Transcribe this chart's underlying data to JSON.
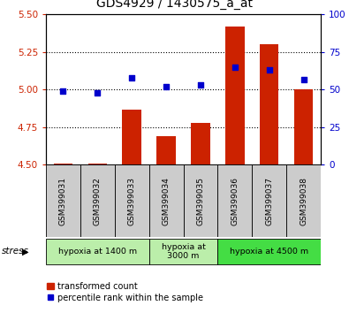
{
  "title": "GDS4929 / 1430575_a_at",
  "samples": [
    "GSM399031",
    "GSM399032",
    "GSM399033",
    "GSM399034",
    "GSM399035",
    "GSM399036",
    "GSM399037",
    "GSM399038"
  ],
  "transformed_count": [
    4.51,
    4.51,
    4.87,
    4.69,
    4.78,
    5.42,
    5.3,
    5.0
  ],
  "percentile_rank": [
    49,
    48,
    58,
    52,
    53,
    65,
    63,
    57
  ],
  "ylim_left": [
    4.5,
    5.5
  ],
  "ylim_right": [
    0,
    100
  ],
  "yticks_left": [
    4.5,
    4.75,
    5.0,
    5.25,
    5.5
  ],
  "yticks_right": [
    0,
    25,
    50,
    75,
    100
  ],
  "bar_color": "#cc2200",
  "scatter_color": "#0000cc",
  "bar_bottom": 4.5,
  "group_configs": [
    {
      "start": 0,
      "end": 2,
      "label": "hypoxia at 1400 m",
      "color": "#bbeeaa"
    },
    {
      "start": 3,
      "end": 4,
      "label": "hypoxia at\n3000 m",
      "color": "#bbeeaa"
    },
    {
      "start": 5,
      "end": 7,
      "label": "hypoxia at 4500 m",
      "color": "#44dd44"
    }
  ],
  "sample_box_color": "#cccccc",
  "stress_label": "stress",
  "background_color": "#ffffff",
  "plot_bg_color": "#ffffff",
  "title_fontsize": 10,
  "tick_fontsize": 7.5,
  "label_color_left": "#cc2200",
  "label_color_right": "#0000cc"
}
